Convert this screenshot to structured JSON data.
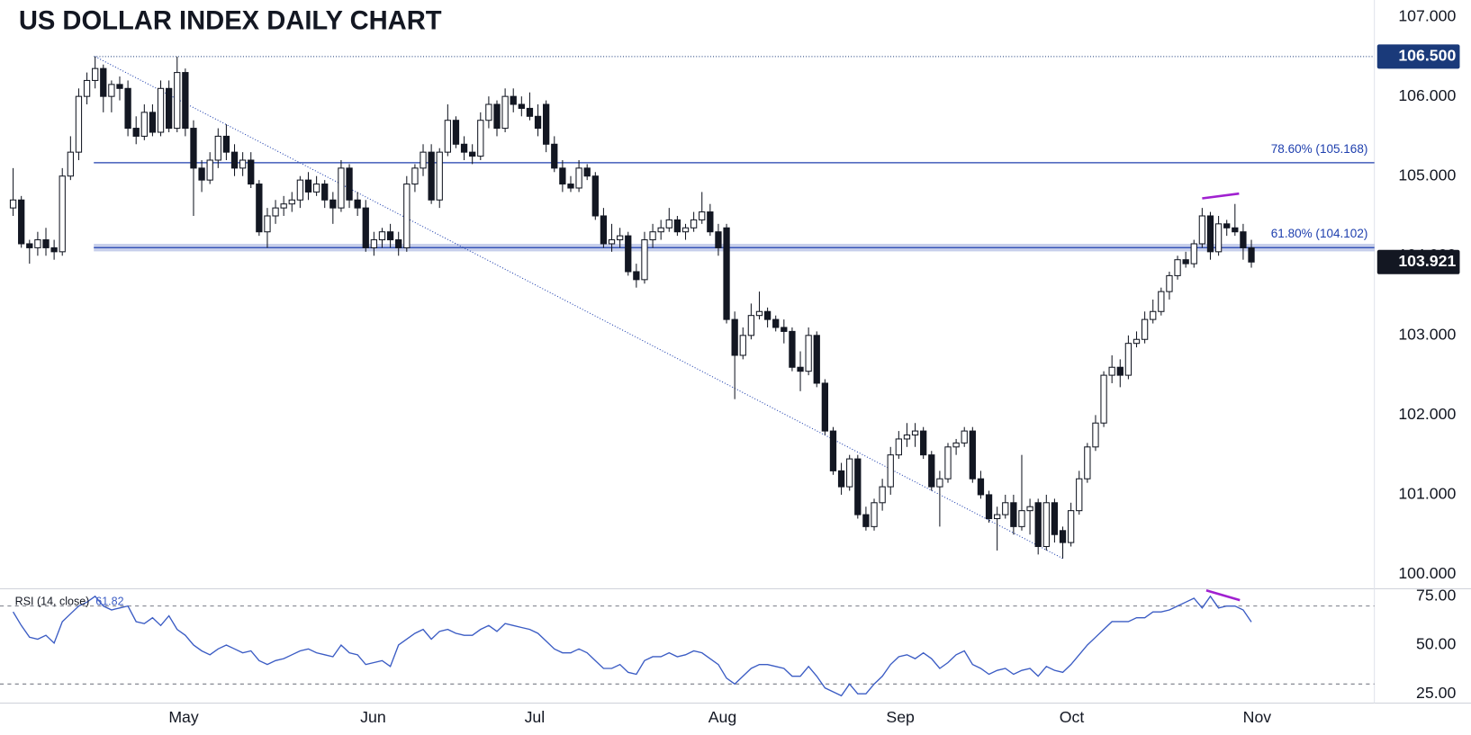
{
  "chart_data": {
    "type": "candlestick",
    "title": "US DOLLAR INDEX DAILY CHART",
    "candles": [
      [
        104.6,
        105.1,
        104.5,
        104.7
      ],
      [
        104.7,
        104.75,
        104.1,
        104.15
      ],
      [
        104.15,
        104.2,
        103.9,
        104.1
      ],
      [
        104.1,
        104.3,
        104.0,
        104.2
      ],
      [
        104.2,
        104.35,
        104.0,
        104.1
      ],
      [
        104.1,
        104.2,
        103.95,
        104.05
      ],
      [
        104.05,
        105.1,
        104.0,
        105.0
      ],
      [
        105.0,
        105.5,
        104.95,
        105.3
      ],
      [
        105.3,
        106.1,
        105.2,
        106.0
      ],
      [
        106.0,
        106.3,
        105.9,
        106.2
      ],
      [
        106.2,
        106.5,
        106.1,
        106.35
      ],
      [
        106.35,
        106.4,
        105.8,
        106.0
      ],
      [
        106.0,
        106.2,
        105.8,
        106.15
      ],
      [
        106.15,
        106.25,
        105.95,
        106.1
      ],
      [
        106.1,
        106.2,
        105.5,
        105.6
      ],
      [
        105.6,
        105.75,
        105.4,
        105.5
      ],
      [
        105.5,
        105.9,
        105.45,
        105.8
      ],
      [
        105.8,
        105.9,
        105.5,
        105.55
      ],
      [
        105.55,
        106.2,
        105.5,
        106.1
      ],
      [
        106.1,
        106.2,
        105.55,
        105.6
      ],
      [
        105.6,
        106.5,
        105.55,
        106.3
      ],
      [
        106.3,
        106.35,
        105.5,
        105.6
      ],
      [
        105.6,
        105.7,
        104.5,
        105.1
      ],
      [
        105.1,
        105.2,
        104.8,
        104.95
      ],
      [
        104.95,
        105.3,
        104.9,
        105.2
      ],
      [
        105.2,
        105.6,
        105.1,
        105.5
      ],
      [
        105.5,
        105.65,
        105.2,
        105.3
      ],
      [
        105.3,
        105.4,
        105.0,
        105.1
      ],
      [
        105.1,
        105.3,
        105.0,
        105.2
      ],
      [
        105.2,
        105.3,
        104.85,
        104.9
      ],
      [
        104.9,
        104.95,
        104.25,
        104.3
      ],
      [
        104.3,
        104.6,
        104.1,
        104.5
      ],
      [
        104.5,
        104.7,
        104.4,
        104.6
      ],
      [
        104.6,
        104.75,
        104.5,
        104.65
      ],
      [
        104.65,
        104.8,
        104.55,
        104.7
      ],
      [
        104.7,
        105.0,
        104.6,
        104.95
      ],
      [
        104.95,
        105.05,
        104.7,
        104.8
      ],
      [
        104.8,
        105.0,
        104.75,
        104.9
      ],
      [
        104.9,
        104.95,
        104.6,
        104.7
      ],
      [
        104.7,
        104.8,
        104.4,
        104.6
      ],
      [
        104.6,
        105.2,
        104.55,
        105.1
      ],
      [
        105.1,
        105.15,
        104.6,
        104.7
      ],
      [
        104.7,
        104.8,
        104.5,
        104.6
      ],
      [
        104.6,
        104.7,
        104.05,
        104.1
      ],
      [
        104.1,
        104.3,
        104.0,
        104.2
      ],
      [
        104.2,
        104.35,
        104.1,
        104.3
      ],
      [
        104.3,
        104.4,
        104.1,
        104.2
      ],
      [
        104.2,
        104.3,
        104.0,
        104.1
      ],
      [
        104.1,
        105.0,
        104.05,
        104.9
      ],
      [
        104.9,
        105.15,
        104.8,
        105.1
      ],
      [
        105.1,
        105.4,
        105.0,
        105.3
      ],
      [
        105.3,
        105.4,
        104.65,
        104.7
      ],
      [
        104.7,
        105.35,
        104.6,
        105.3
      ],
      [
        105.3,
        105.9,
        105.25,
        105.7
      ],
      [
        105.7,
        105.75,
        105.35,
        105.4
      ],
      [
        105.4,
        105.5,
        105.2,
        105.3
      ],
      [
        105.3,
        105.4,
        105.15,
        105.25
      ],
      [
        105.25,
        105.8,
        105.2,
        105.7
      ],
      [
        105.7,
        106.0,
        105.6,
        105.9
      ],
      [
        105.9,
        105.95,
        105.5,
        105.6
      ],
      [
        105.6,
        106.1,
        105.55,
        106.0
      ],
      [
        106.0,
        106.1,
        105.8,
        105.9
      ],
      [
        105.9,
        106.0,
        105.75,
        105.85
      ],
      [
        105.85,
        106.05,
        105.7,
        105.75
      ],
      [
        105.75,
        105.9,
        105.5,
        105.6
      ],
      [
        105.9,
        105.95,
        105.3,
        105.4
      ],
      [
        105.4,
        105.5,
        105.05,
        105.1
      ],
      [
        105.1,
        105.2,
        104.8,
        104.9
      ],
      [
        104.9,
        105.0,
        104.8,
        104.85
      ],
      [
        104.85,
        105.2,
        104.8,
        105.1
      ],
      [
        105.1,
        105.15,
        104.95,
        105.0
      ],
      [
        105.0,
        105.05,
        104.45,
        104.5
      ],
      [
        104.5,
        104.6,
        104.1,
        104.15
      ],
      [
        104.15,
        104.4,
        104.05,
        104.2
      ],
      [
        104.2,
        104.35,
        104.1,
        104.25
      ],
      [
        104.25,
        104.3,
        103.75,
        103.8
      ],
      [
        103.8,
        103.9,
        103.6,
        103.7
      ],
      [
        103.7,
        104.3,
        103.65,
        104.2
      ],
      [
        104.2,
        104.4,
        104.1,
        104.3
      ],
      [
        104.3,
        104.45,
        104.2,
        104.35
      ],
      [
        104.35,
        104.6,
        104.3,
        104.45
      ],
      [
        104.45,
        104.5,
        104.25,
        104.3
      ],
      [
        104.3,
        104.4,
        104.2,
        104.35
      ],
      [
        104.35,
        104.55,
        104.3,
        104.45
      ],
      [
        104.45,
        104.8,
        104.4,
        104.55
      ],
      [
        104.55,
        104.65,
        104.25,
        104.3
      ],
      [
        104.3,
        104.4,
        104.0,
        104.1
      ],
      [
        104.35,
        104.4,
        103.15,
        103.2
      ],
      [
        103.2,
        103.3,
        102.2,
        102.75
      ],
      [
        102.75,
        103.1,
        102.7,
        103.0
      ],
      [
        103.0,
        103.4,
        102.95,
        103.25
      ],
      [
        103.25,
        103.55,
        103.2,
        103.3
      ],
      [
        103.3,
        103.35,
        103.1,
        103.2
      ],
      [
        103.2,
        103.25,
        103.05,
        103.1
      ],
      [
        103.1,
        103.2,
        102.9,
        103.05
      ],
      [
        103.05,
        103.1,
        102.55,
        102.6
      ],
      [
        102.6,
        102.8,
        102.3,
        102.55
      ],
      [
        102.55,
        103.1,
        102.5,
        103.0
      ],
      [
        103.0,
        103.05,
        102.35,
        102.4
      ],
      [
        102.4,
        102.45,
        101.75,
        101.8
      ],
      [
        101.8,
        101.85,
        101.25,
        101.3
      ],
      [
        101.3,
        101.4,
        101.0,
        101.1
      ],
      [
        101.1,
        101.5,
        101.05,
        101.45
      ],
      [
        101.45,
        101.5,
        100.7,
        100.75
      ],
      [
        100.75,
        100.85,
        100.55,
        100.6
      ],
      [
        100.6,
        100.95,
        100.55,
        100.9
      ],
      [
        100.9,
        101.2,
        100.8,
        101.1
      ],
      [
        101.1,
        101.6,
        101.0,
        101.5
      ],
      [
        101.5,
        101.8,
        101.45,
        101.7
      ],
      [
        101.7,
        101.9,
        101.6,
        101.75
      ],
      [
        101.75,
        101.9,
        101.6,
        101.8
      ],
      [
        101.8,
        101.85,
        101.45,
        101.5
      ],
      [
        101.5,
        101.55,
        101.05,
        101.1
      ],
      [
        101.1,
        101.3,
        100.6,
        101.2
      ],
      [
        101.2,
        101.65,
        101.15,
        101.6
      ],
      [
        101.6,
        101.7,
        101.5,
        101.65
      ],
      [
        101.65,
        101.85,
        101.6,
        101.8
      ],
      [
        101.8,
        101.85,
        101.15,
        101.2
      ],
      [
        101.2,
        101.3,
        100.95,
        101.0
      ],
      [
        101.0,
        101.05,
        100.65,
        100.7
      ],
      [
        100.7,
        100.85,
        100.3,
        100.75
      ],
      [
        100.75,
        101.0,
        100.7,
        100.9
      ],
      [
        100.9,
        101.0,
        100.5,
        100.6
      ],
      [
        100.6,
        101.5,
        100.55,
        100.8
      ],
      [
        100.8,
        100.95,
        100.5,
        100.85
      ],
      [
        100.9,
        100.95,
        100.25,
        100.35
      ],
      [
        100.35,
        101.0,
        100.3,
        100.9
      ],
      [
        100.9,
        100.95,
        100.4,
        100.5
      ],
      [
        100.55,
        100.6,
        100.2,
        100.4
      ],
      [
        100.4,
        100.9,
        100.35,
        100.8
      ],
      [
        100.8,
        101.3,
        100.75,
        101.2
      ],
      [
        101.2,
        101.65,
        101.15,
        101.6
      ],
      [
        101.6,
        102.0,
        101.55,
        101.9
      ],
      [
        101.9,
        102.55,
        101.85,
        102.5
      ],
      [
        102.5,
        102.75,
        102.4,
        102.6
      ],
      [
        102.6,
        102.7,
        102.35,
        102.5
      ],
      [
        102.5,
        103.0,
        102.45,
        102.9
      ],
      [
        102.9,
        103.05,
        102.85,
        102.95
      ],
      [
        102.95,
        103.3,
        102.9,
        103.2
      ],
      [
        103.2,
        103.45,
        103.15,
        103.3
      ],
      [
        103.3,
        103.6,
        103.25,
        103.55
      ],
      [
        103.55,
        103.8,
        103.45,
        103.75
      ],
      [
        103.75,
        104.0,
        103.7,
        103.95
      ],
      [
        103.95,
        104.05,
        103.85,
        103.9
      ],
      [
        103.9,
        104.2,
        103.85,
        104.15
      ],
      [
        104.15,
        104.6,
        104.1,
        104.5
      ],
      [
        104.5,
        104.55,
        103.95,
        104.05
      ],
      [
        104.05,
        104.5,
        104.0,
        104.4
      ],
      [
        104.4,
        104.45,
        104.25,
        104.35
      ],
      [
        104.35,
        104.65,
        104.25,
        104.3
      ],
      [
        104.3,
        104.4,
        103.95,
        104.1
      ],
      [
        104.1,
        104.2,
        103.85,
        103.921
      ]
    ],
    "xlim": [
      -1.6,
      166
    ],
    "xticks": [
      {
        "value": 20.8,
        "label": "May"
      },
      {
        "value": 43.9,
        "label": "Jun"
      },
      {
        "value": 63.6,
        "label": "Jul"
      },
      {
        "value": 86.5,
        "label": "Aug"
      },
      {
        "value": 108.2,
        "label": "Sep"
      },
      {
        "value": 129.1,
        "label": "Oct"
      },
      {
        "value": 151.7,
        "label": "Nov"
      }
    ],
    "ylim": [
      99.82,
      107.21
    ],
    "yticks": [
      {
        "value": 100,
        "label": "100.000"
      },
      {
        "value": 101,
        "label": "101.000"
      },
      {
        "value": 102,
        "label": "102.000"
      },
      {
        "value": 103,
        "label": "103.000"
      },
      {
        "value": 104,
        "label": "104.000"
      },
      {
        "value": 105,
        "label": "105.000"
      },
      {
        "value": 106,
        "label": "106.000"
      },
      {
        "value": 107,
        "label": "107.000"
      }
    ],
    "level": {
      "value": 106.5,
      "label": "106.500",
      "color": "#1a3a7a"
    },
    "last_price": {
      "value": 103.921,
      "label": "103.921",
      "color": "#131722"
    },
    "fib_levels": [
      {
        "value": 105.168,
        "label": "78.60% (105.168)"
      },
      {
        "value": 104.102,
        "label": "61.80% (104.102)"
      }
    ],
    "fib_color": "#1e3fae",
    "trendline": {
      "from": [
        10,
        106.5
      ],
      "to": [
        128,
        100.2
      ],
      "color": "#1e3fae"
    },
    "divergence_color": "#a020d0",
    "divergence_price": {
      "from": [
        145,
        104.72
      ],
      "to": [
        149.5,
        104.78
      ]
    },
    "bull_color": "#ffffff",
    "bear_color": "#131722",
    "rsi": {
      "name": "RSI (14, close)",
      "color": "#3b5cc4",
      "values": [
        67,
        60,
        54,
        53,
        55,
        51,
        62,
        66,
        70,
        72,
        75,
        70,
        68,
        69,
        70,
        62,
        61,
        64,
        60,
        65,
        58,
        55,
        50,
        47,
        45,
        48,
        50,
        48,
        46,
        47,
        42,
        40,
        42,
        43,
        45,
        47,
        48,
        46,
        45,
        44,
        50,
        46,
        45,
        40,
        41,
        42,
        39,
        50,
        53,
        56,
        58,
        53,
        57,
        58,
        56,
        55,
        55,
        58,
        60,
        57,
        61,
        60,
        59,
        58,
        56,
        52,
        48,
        46,
        46,
        48,
        46,
        42,
        38,
        38,
        40,
        36,
        35,
        42,
        44,
        44,
        46,
        44,
        45,
        47,
        46,
        43,
        40,
        33,
        30,
        34,
        38,
        40,
        40,
        39,
        38,
        34,
        34,
        39,
        34,
        28,
        26,
        24,
        30,
        25,
        25,
        30,
        34,
        40,
        44,
        45,
        43,
        46,
        43,
        38,
        41,
        45,
        47,
        40,
        38,
        35,
        37,
        38,
        35,
        37,
        38,
        34,
        39,
        37,
        36,
        40,
        45,
        50,
        54,
        58,
        62,
        62,
        62,
        64,
        64,
        67,
        67,
        68,
        70,
        72,
        74,
        69,
        75,
        69,
        70,
        70,
        68,
        61.82
      ],
      "ylim": [
        20.2,
        77.9
      ],
      "yticks": [
        {
          "value": 25,
          "label": "25.00"
        },
        {
          "value": 50,
          "label": "50.00"
        },
        {
          "value": 75,
          "label": "75.00"
        }
      ],
      "levels": [
        70,
        30
      ],
      "divergence": {
        "from": [
          145.5,
          78
        ],
        "to": [
          149.6,
          73
        ]
      }
    }
  }
}
